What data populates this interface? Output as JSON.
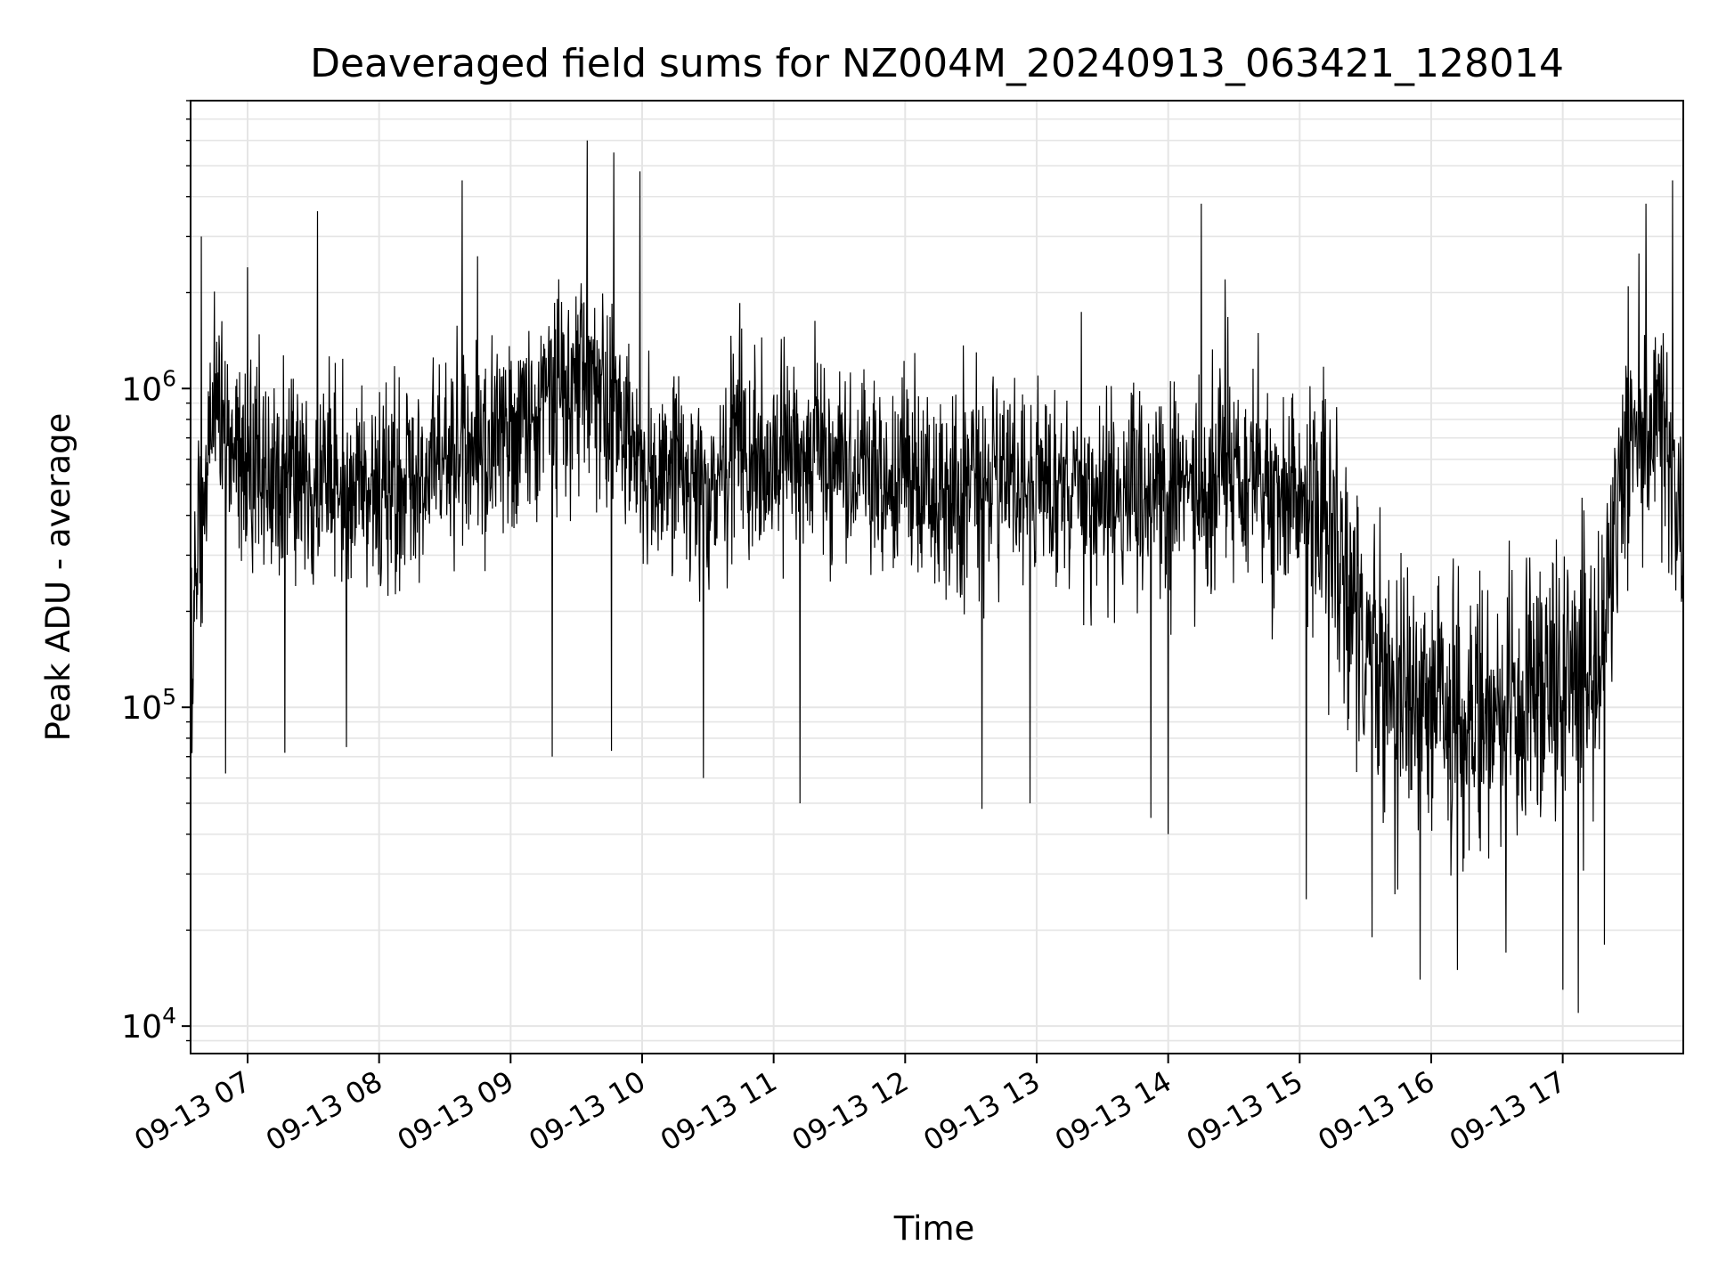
{
  "chart_data": {
    "type": "line",
    "title": "Deaveraged field sums for NZ004M_20240913_063421_128014",
    "xlabel": "Time",
    "ylabel": "Peak ADU - average",
    "yscale": "log",
    "xlim": [
      "09-13 06:34",
      "09-13 17:55"
    ],
    "ylim": [
      8200,
      8000000
    ],
    "grid": true,
    "legend": "none",
    "line_color": "#000000",
    "grid_color": "#e5e5e5",
    "x_ticks": [
      "09-13 07",
      "09-13 08",
      "09-13 09",
      "09-13 10",
      "09-13 11",
      "09-13 12",
      "09-13 13",
      "09-13 14",
      "09-13 15",
      "09-13 16",
      "09-13 17"
    ],
    "y_ticks": [
      {
        "value": 10000,
        "base": "10",
        "exp": "4"
      },
      {
        "value": 100000,
        "base": "10",
        "exp": "5"
      },
      {
        "value": 1000000,
        "base": "10",
        "exp": "6"
      }
    ],
    "series": [
      {
        "x": [
          "09-13 06:34",
          "09-13 06:45",
          "09-13 07:00",
          "09-13 07:15",
          "09-13 07:30",
          "09-13 07:45",
          "09-13 08:00",
          "09-13 08:15",
          "09-13 08:30",
          "09-13 08:45",
          "09-13 09:00",
          "09-13 09:15",
          "09-13 09:30",
          "09-13 09:45",
          "09-13 10:00",
          "09-13 10:15",
          "09-13 10:30",
          "09-13 10:45",
          "09-13 11:00",
          "09-13 11:15",
          "09-13 11:30",
          "09-13 11:45",
          "09-13 12:00",
          "09-13 12:15",
          "09-13 12:30",
          "09-13 12:45",
          "09-13 13:00",
          "09-13 13:15",
          "09-13 13:30",
          "09-13 13:45",
          "09-13 14:00",
          "09-13 14:15",
          "09-13 14:30",
          "09-13 14:45",
          "09-13 15:00",
          "09-13 15:15",
          "09-13 15:30",
          "09-13 15:45",
          "09-13 16:00",
          "09-13 16:15",
          "09-13 16:30",
          "09-13 16:45",
          "09-13 17:00",
          "09-13 17:15",
          "09-13 17:30",
          "09-13 17:45",
          "09-13 17:55"
        ],
        "y": [
          180000,
          900000,
          600000,
          520000,
          500000,
          480000,
          450000,
          500000,
          600000,
          620000,
          800000,
          850000,
          1100000,
          900000,
          550000,
          520000,
          450000,
          650000,
          600000,
          620000,
          550000,
          500000,
          480000,
          420000,
          520000,
          500000,
          470000,
          500000,
          450000,
          480000,
          420000,
          500000,
          600000,
          520000,
          450000,
          350000,
          150000,
          110000,
          95000,
          90000,
          100000,
          110000,
          120000,
          130000,
          700000,
          800000,
          300000
        ]
      }
    ],
    "spikes": [
      {
        "x": "09-13 06:39",
        "y": 3000000
      },
      {
        "x": "09-13 07:00",
        "y": 2400000
      },
      {
        "x": "09-13 07:32",
        "y": 3600000
      },
      {
        "x": "09-13 08:38",
        "y": 4500000
      },
      {
        "x": "09-13 08:45",
        "y": 2600000
      },
      {
        "x": "09-13 09:22",
        "y": 2200000
      },
      {
        "x": "09-13 09:35",
        "y": 6000000
      },
      {
        "x": "09-13 09:47",
        "y": 5500000
      },
      {
        "x": "09-13 09:59",
        "y": 4800000
      },
      {
        "x": "09-13 14:15",
        "y": 3800000
      },
      {
        "x": "09-13 14:26",
        "y": 2200000
      },
      {
        "x": "09-13 17:38",
        "y": 3800000
      },
      {
        "x": "09-13 17:50",
        "y": 4500000
      },
      {
        "x": "09-13 06:50",
        "y": 62000
      },
      {
        "x": "09-13 07:17",
        "y": 72000
      },
      {
        "x": "09-13 07:45",
        "y": 75000
      },
      {
        "x": "09-13 09:19",
        "y": 70000
      },
      {
        "x": "09-13 09:46",
        "y": 73000
      },
      {
        "x": "09-13 10:28",
        "y": 60000
      },
      {
        "x": "09-13 11:12",
        "y": 50000
      },
      {
        "x": "09-13 12:35",
        "y": 48000
      },
      {
        "x": "09-13 12:57",
        "y": 50000
      },
      {
        "x": "09-13 13:52",
        "y": 45000
      },
      {
        "x": "09-13 14:00",
        "y": 40000
      },
      {
        "x": "09-13 15:03",
        "y": 25000
      },
      {
        "x": "09-13 15:33",
        "y": 19000
      },
      {
        "x": "09-13 15:55",
        "y": 14000
      },
      {
        "x": "09-13 16:12",
        "y": 15000
      },
      {
        "x": "09-13 16:34",
        "y": 17000
      },
      {
        "x": "09-13 17:00",
        "y": 13000
      },
      {
        "x": "09-13 17:07",
        "y": 11000
      },
      {
        "x": "09-13 17:19",
        "y": 18000
      }
    ]
  }
}
